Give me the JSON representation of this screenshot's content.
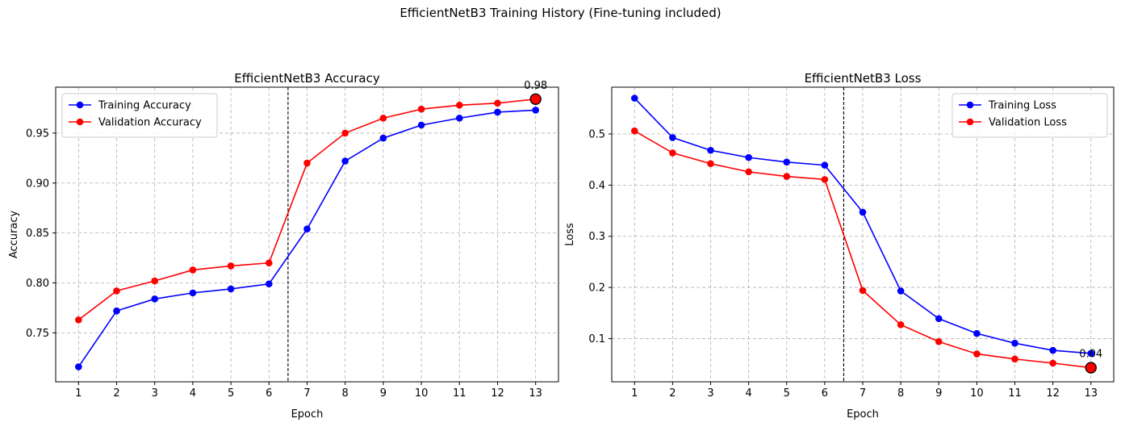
{
  "suptitle": "EfficientNetB3 Training History (Fine-tuning included)",
  "chart_data": [
    {
      "type": "line",
      "title": "EfficientNetB3 Accuracy",
      "xlabel": "Epoch",
      "ylabel": "Accuracy",
      "x": [
        1,
        2,
        3,
        4,
        5,
        6,
        7,
        8,
        9,
        10,
        11,
        12,
        13
      ],
      "xlim": [
        0.4,
        13.6
      ],
      "ylim": [
        0.701,
        0.996
      ],
      "yticks": [
        0.75,
        0.8,
        0.85,
        0.9,
        0.95
      ],
      "ytick_labels": [
        "0.75",
        "0.80",
        "0.85",
        "0.90",
        "0.95"
      ],
      "grid": true,
      "legend_position": "upper-left",
      "vline_x": 6.5,
      "series": [
        {
          "name": "Training Accuracy",
          "color": "#0000ff",
          "values": [
            0.716,
            0.772,
            0.784,
            0.79,
            0.794,
            0.799,
            0.854,
            0.922,
            0.945,
            0.958,
            0.965,
            0.971,
            0.973
          ]
        },
        {
          "name": "Validation Accuracy",
          "color": "#ff0000",
          "values": [
            0.763,
            0.792,
            0.802,
            0.813,
            0.817,
            0.82,
            0.92,
            0.95,
            0.965,
            0.974,
            0.978,
            0.98,
            0.984
          ]
        }
      ],
      "best_marker": {
        "x": 13,
        "y": 0.984,
        "label": "0.98"
      }
    },
    {
      "type": "line",
      "title": "EfficientNetB3 Loss",
      "xlabel": "Epoch",
      "ylabel": "Loss",
      "x": [
        1,
        2,
        3,
        4,
        5,
        6,
        7,
        8,
        9,
        10,
        11,
        12,
        13
      ],
      "xlim": [
        0.4,
        13.6
      ],
      "ylim": [
        0.0155,
        0.5915
      ],
      "yticks": [
        0.1,
        0.2,
        0.3,
        0.4,
        0.5
      ],
      "ytick_labels": [
        "0.1",
        "0.2",
        "0.3",
        "0.4",
        "0.5"
      ],
      "grid": true,
      "legend_position": "upper-right",
      "vline_x": 6.5,
      "series": [
        {
          "name": "Training Loss",
          "color": "#0000ff",
          "values": [
            0.57,
            0.493,
            0.468,
            0.454,
            0.445,
            0.439,
            0.347,
            0.193,
            0.139,
            0.11,
            0.091,
            0.077,
            0.071
          ]
        },
        {
          "name": "Validation Loss",
          "color": "#ff0000",
          "values": [
            0.506,
            0.463,
            0.442,
            0.426,
            0.417,
            0.411,
            0.194,
            0.127,
            0.094,
            0.07,
            0.06,
            0.052,
            0.043
          ]
        }
      ],
      "best_marker": {
        "x": 13,
        "y": 0.043,
        "label": "0.04"
      }
    }
  ]
}
